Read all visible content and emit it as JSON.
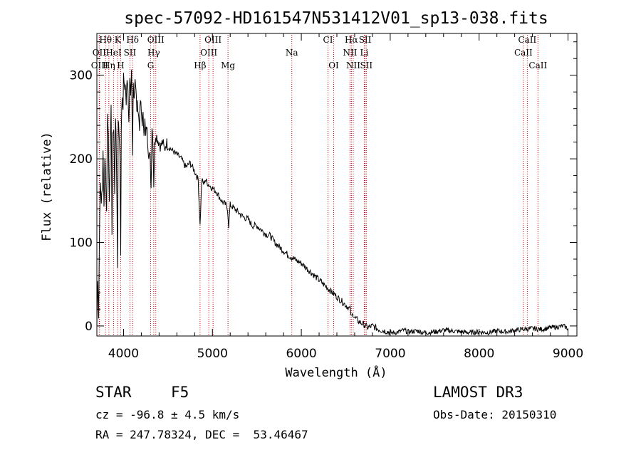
{
  "chart_data": {
    "type": "line",
    "title": "spec-57092-HD161547N531412V01_sp13-038.fits",
    "xlabel": "Wavelength (Å)",
    "ylabel": "Flux (relative)",
    "xlim": [
      3700,
      9100
    ],
    "ylim": [
      -12,
      350
    ],
    "xticks": [
      4000,
      5000,
      6000,
      7000,
      8000,
      9000
    ],
    "yticks": [
      0,
      100,
      200,
      300
    ],
    "series": [
      {
        "name": "spectrum",
        "x": [
          3700,
          3710,
          3720,
          3730,
          3740,
          3750,
          3760,
          3770,
          3780,
          3790,
          3800,
          3810,
          3820,
          3830,
          3840,
          3850,
          3860,
          3870,
          3880,
          3890,
          3900,
          3910,
          3920,
          3933,
          3940,
          3950,
          3960,
          3968,
          3975,
          3985,
          3995,
          4000,
          4010,
          4020,
          4030,
          4040,
          4050,
          4060,
          4070,
          4080,
          4090,
          4101,
          4110,
          4120,
          4130,
          4140,
          4150,
          4160,
          4170,
          4180,
          4190,
          4200,
          4210,
          4220,
          4230,
          4240,
          4250,
          4260,
          4270,
          4280,
          4290,
          4300,
          4310,
          4320,
          4330,
          4340,
          4350,
          4360,
          4380,
          4400,
          4420,
          4440,
          4460,
          4480,
          4500,
          4550,
          4600,
          4650,
          4700,
          4750,
          4800,
          4820,
          4840,
          4861,
          4880,
          4900,
          4920,
          4950,
          5000,
          5050,
          5100,
          5150,
          5170,
          5183,
          5200,
          5250,
          5300,
          5350,
          5400,
          5450,
          5500,
          5550,
          5600,
          5650,
          5700,
          5750,
          5800,
          5850,
          5893,
          5950,
          6000,
          6050,
          6100,
          6150,
          6200,
          6250,
          6300,
          6350,
          6400,
          6450,
          6500,
          6550,
          6563,
          6580,
          6600,
          6650,
          6700,
          6750,
          6800,
          6850,
          6900,
          6950,
          7000,
          7050,
          7100,
          7150,
          7200,
          7300,
          7400,
          7500,
          7600,
          7700,
          7800,
          7900,
          8000,
          8100,
          8200,
          8300,
          8400,
          8500,
          8600,
          8700,
          8800,
          8900,
          8950,
          9000
        ],
        "values": [
          0,
          60,
          10,
          120,
          170,
          150,
          160,
          210,
          140,
          200,
          180,
          130,
          260,
          220,
          150,
          200,
          270,
          110,
          230,
          240,
          160,
          255,
          200,
          70,
          250,
          230,
          200,
          90,
          240,
          280,
          260,
          300,
          280,
          290,
          265,
          295,
          285,
          240,
          300,
          270,
          300,
          200,
          290,
          275,
          300,
          280,
          260,
          265,
          250,
          240,
          270,
          255,
          245,
          250,
          235,
          245,
          225,
          240,
          225,
          210,
          205,
          200,
          165,
          240,
          225,
          170,
          215,
          230,
          225,
          220,
          215,
          220,
          210,
          220,
          215,
          210,
          205,
          200,
          190,
          195,
          185,
          180,
          175,
          120,
          175,
          170,
          175,
          170,
          165,
          160,
          150,
          145,
          140,
          120,
          145,
          140,
          135,
          130,
          128,
          120,
          120,
          115,
          110,
          108,
          100,
          95,
          90,
          85,
          82,
          78,
          75,
          70,
          65,
          60,
          55,
          50,
          45,
          40,
          35,
          30,
          25,
          20,
          10,
          15,
          10,
          5,
          2,
          -2,
          0,
          -3,
          -5,
          -6,
          -8,
          -8,
          -7,
          -5,
          -7,
          -6,
          -8,
          -7,
          -5,
          -6,
          -7,
          -8,
          -7,
          -8,
          -6,
          -7,
          -5,
          -4,
          -3,
          -4,
          -2,
          -1,
          0,
          -3
        ]
      }
    ],
    "lines": [
      {
        "label": "Hθ",
        "wl": 3798,
        "row": 0
      },
      {
        "label": "K",
        "wl": 3934,
        "row": 0
      },
      {
        "label": "Hδ",
        "wl": 4102,
        "row": 0
      },
      {
        "label": "OIII",
        "wl": 4363,
        "row": 0
      },
      {
        "label": "OIII",
        "wl": 5007,
        "row": 0
      },
      {
        "label": "CI",
        "wl": 6300,
        "row": 0
      },
      {
        "label": "Hα",
        "wl": 6563,
        "row": 0
      },
      {
        "label": "SII",
        "wl": 6717,
        "row": 0
      },
      {
        "label": "CaII",
        "wl": 8542,
        "row": 0
      },
      {
        "label": "OII",
        "wl": 3727,
        "row": 1
      },
      {
        "label": "HeI",
        "wl": 3889,
        "row": 1
      },
      {
        "label": "SII",
        "wl": 4072,
        "row": 1
      },
      {
        "label": "Hγ",
        "wl": 4340,
        "row": 1
      },
      {
        "label": "OIII",
        "wl": 4959,
        "row": 1
      },
      {
        "label": "Na",
        "wl": 5893,
        "row": 1
      },
      {
        "label": "NII",
        "wl": 6548,
        "row": 1
      },
      {
        "label": "Li",
        "wl": 6708,
        "row": 1
      },
      {
        "label": "CaII",
        "wl": 8498,
        "row": 1
      },
      {
        "label": "OIII",
        "wl": 3730,
        "row": 2
      },
      {
        "label": "Hη",
        "wl": 3835,
        "row": 2
      },
      {
        "label": "H",
        "wl": 3968,
        "row": 2
      },
      {
        "label": "G",
        "wl": 4305,
        "row": 2
      },
      {
        "label": "Hβ",
        "wl": 4861,
        "row": 2
      },
      {
        "label": "Mg",
        "wl": 5175,
        "row": 2
      },
      {
        "label": "OI",
        "wl": 6364,
        "row": 2
      },
      {
        "label": "NII",
        "wl": 6584,
        "row": 2
      },
      {
        "label": "SII",
        "wl": 6731,
        "row": 2
      },
      {
        "label": "CaII",
        "wl": 8662,
        "row": 2
      }
    ]
  },
  "info": {
    "class": "STAR",
    "subclass": "F5",
    "survey": "LAMOST DR3",
    "cz": "cz = -96.8 ± 4.5 km/s",
    "obsdate": "Obs-Date: 20150310",
    "coords": "RA = 247.78324, DEC =  53.46467"
  },
  "colors": {
    "line_marker": "#cc0000",
    "spectrum": "#000000"
  }
}
